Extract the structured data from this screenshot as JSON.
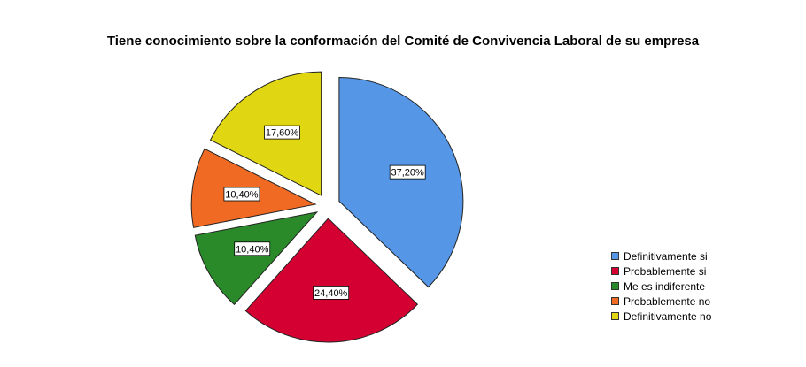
{
  "chart_data": {
    "type": "pie",
    "title": "Tiene conocimiento sobre la conformación del Comité de Convivencia Laboral de su empresa",
    "categories": [
      "Definitivamente si",
      "Probablemente si",
      "Me es indiferente",
      "Probablemente no",
      "Definitivamente no"
    ],
    "values": [
      37.2,
      24.4,
      10.4,
      10.4,
      17.6
    ],
    "labels": [
      "37,20%",
      "24,40%",
      "10,40%",
      "10,40%",
      "17,60%"
    ],
    "colors": [
      "#5597e6",
      "#d50032",
      "#2a8a2a",
      "#f06a23",
      "#e0d712"
    ],
    "exploded": true,
    "legend_position": "bottom-right"
  }
}
